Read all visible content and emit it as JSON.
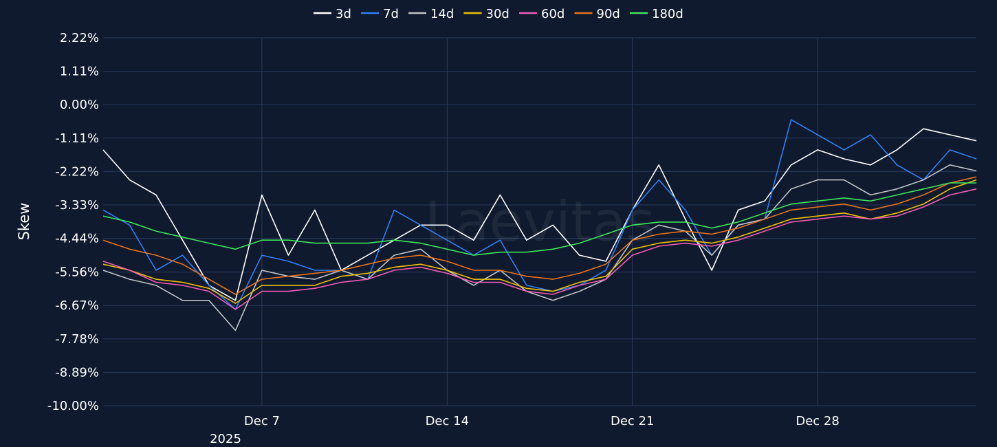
{
  "chart_data": {
    "type": "line",
    "title": "",
    "xlabel": "",
    "ylabel": "Skew",
    "ylim": [
      -10.0,
      2.22
    ],
    "xlim": [
      "2025-12-01",
      "2026-01-03"
    ],
    "y_ticks": [
      2.22,
      1.11,
      0.0,
      -1.11,
      -2.22,
      -3.33,
      -4.44,
      -5.56,
      -6.67,
      -7.78,
      -8.89,
      -10.0
    ],
    "y_tick_labels": [
      "2.22%",
      "1.11%",
      "0.00%",
      "-1.11%",
      "-2.22%",
      "-3.33%",
      "-4.44%",
      "-5.56%",
      "-6.67%",
      "-7.78%",
      "-8.89%",
      "-10.00%"
    ],
    "x_ticks": [
      "2025-12-07",
      "2025-12-14",
      "2025-12-21",
      "2025-12-28"
    ],
    "x_tick_labels": [
      "Dec 7",
      "Dec 14",
      "Dec 21",
      "Dec 28"
    ],
    "x_year_label": "2025",
    "grid": true,
    "legend_position": "top-center",
    "watermark": "Laevitas",
    "x": [
      "2025-12-01",
      "2025-12-02",
      "2025-12-03",
      "2025-12-04",
      "2025-12-05",
      "2025-12-06",
      "2025-12-07",
      "2025-12-08",
      "2025-12-09",
      "2025-12-10",
      "2025-12-11",
      "2025-12-12",
      "2025-12-13",
      "2025-12-14",
      "2025-12-15",
      "2025-12-16",
      "2025-12-17",
      "2025-12-18",
      "2025-12-19",
      "2025-12-20",
      "2025-12-21",
      "2025-12-22",
      "2025-12-23",
      "2025-12-24",
      "2025-12-25",
      "2025-12-26",
      "2025-12-27",
      "2025-12-28",
      "2025-12-29",
      "2025-12-30",
      "2025-12-31",
      "2026-01-01",
      "2026-01-02",
      "2026-01-03"
    ],
    "series": [
      {
        "name": "3d",
        "color": "#ffffff",
        "values": [
          -1.5,
          -2.5,
          -3.0,
          -4.5,
          -6.0,
          -6.5,
          -3.0,
          -5.0,
          -3.5,
          -5.5,
          -5.0,
          -4.5,
          -4.0,
          -4.0,
          -4.5,
          -3.0,
          -4.5,
          -4.0,
          -5.0,
          -5.2,
          -3.5,
          -2.0,
          -3.8,
          -5.5,
          -3.5,
          -3.2,
          -2.0,
          -1.5,
          -1.8,
          -2.0,
          -1.5,
          -0.8,
          -1.0,
          -1.2
        ]
      },
      {
        "name": "7d",
        "color": "#2f7ff5",
        "values": [
          -3.5,
          -4.0,
          -5.5,
          -5.0,
          -6.0,
          -6.8,
          -5.0,
          -5.2,
          -5.5,
          -5.5,
          -5.8,
          -3.5,
          -4.0,
          -4.5,
          -5.0,
          -4.5,
          -6.0,
          -6.2,
          -6.0,
          -5.5,
          -3.5,
          -2.5,
          -3.5,
          -5.0,
          -4.0,
          -3.8,
          -0.5,
          -1.0,
          -1.5,
          -1.0,
          -2.0,
          -2.5,
          -1.5,
          -1.8
        ]
      },
      {
        "name": "14d",
        "color": "#c0c3c8",
        "values": [
          -5.5,
          -5.8,
          -6.0,
          -6.5,
          -6.5,
          -7.5,
          -5.5,
          -5.7,
          -5.8,
          -5.5,
          -5.8,
          -5.0,
          -4.8,
          -5.5,
          -6.0,
          -5.5,
          -6.2,
          -6.5,
          -6.2,
          -5.8,
          -4.5,
          -4.0,
          -4.2,
          -5.0,
          -4.0,
          -3.8,
          -2.8,
          -2.5,
          -2.5,
          -3.0,
          -2.8,
          -2.5,
          -2.0,
          -2.2
        ]
      },
      {
        "name": "30d",
        "color": "#f0c000",
        "values": [
          -5.3,
          -5.5,
          -5.8,
          -5.9,
          -6.1,
          -6.6,
          -6.0,
          -6.0,
          -6.0,
          -5.7,
          -5.6,
          -5.4,
          -5.3,
          -5.5,
          -5.8,
          -5.8,
          -6.1,
          -6.2,
          -5.9,
          -5.7,
          -4.8,
          -4.6,
          -4.5,
          -4.6,
          -4.4,
          -4.1,
          -3.8,
          -3.7,
          -3.6,
          -3.8,
          -3.6,
          -3.3,
          -2.8,
          -2.5
        ]
      },
      {
        "name": "60d",
        "color": "#f25cb6",
        "values": [
          -5.2,
          -5.5,
          -5.9,
          -6.0,
          -6.2,
          -6.8,
          -6.2,
          -6.2,
          -6.1,
          -5.9,
          -5.8,
          -5.5,
          -5.4,
          -5.6,
          -5.9,
          -5.9,
          -6.2,
          -6.3,
          -6.0,
          -5.8,
          -5.0,
          -4.7,
          -4.6,
          -4.7,
          -4.5,
          -4.2,
          -3.9,
          -3.8,
          -3.7,
          -3.8,
          -3.7,
          -3.4,
          -3.0,
          -2.8
        ]
      },
      {
        "name": "90d",
        "color": "#e8731a",
        "values": [
          -4.5,
          -4.8,
          -5.0,
          -5.3,
          -5.8,
          -6.3,
          -5.8,
          -5.7,
          -5.6,
          -5.5,
          -5.3,
          -5.1,
          -5.0,
          -5.2,
          -5.5,
          -5.5,
          -5.7,
          -5.8,
          -5.6,
          -5.3,
          -4.5,
          -4.3,
          -4.2,
          -4.3,
          -4.1,
          -3.8,
          -3.5,
          -3.4,
          -3.3,
          -3.5,
          -3.3,
          -3.0,
          -2.6,
          -2.4
        ]
      },
      {
        "name": "180d",
        "color": "#3de65a",
        "values": [
          -3.7,
          -3.9,
          -4.2,
          -4.4,
          -4.6,
          -4.8,
          -4.5,
          -4.5,
          -4.6,
          -4.6,
          -4.6,
          -4.5,
          -4.6,
          -4.8,
          -5.0,
          -4.9,
          -4.9,
          -4.8,
          -4.6,
          -4.3,
          -4.0,
          -3.9,
          -3.9,
          -4.1,
          -3.9,
          -3.6,
          -3.3,
          -3.2,
          -3.1,
          -3.2,
          -3.0,
          -2.8,
          -2.6,
          -2.6
        ]
      }
    ]
  }
}
